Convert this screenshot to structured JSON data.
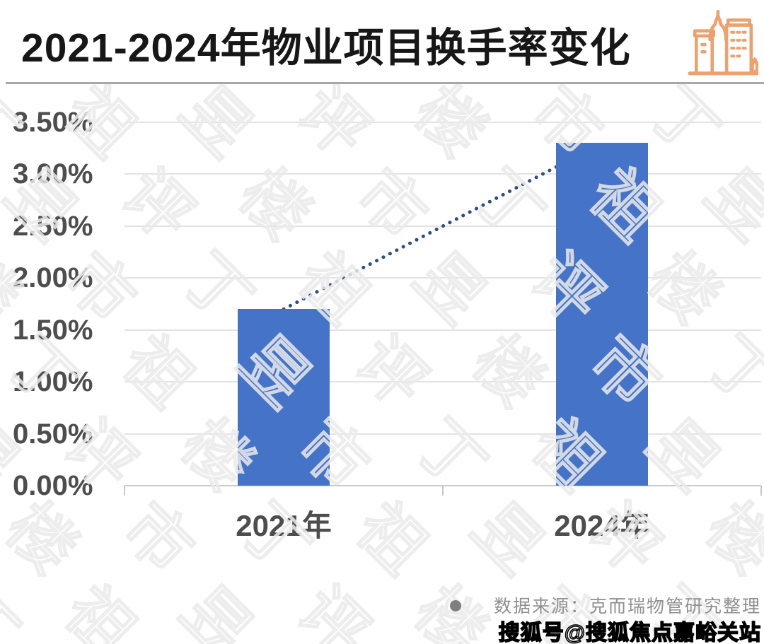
{
  "header": {
    "title": "2021-2024年物业项目换手率变化",
    "icon": "buildings-icon",
    "icon_color": "#EBA26E"
  },
  "chart_data": {
    "type": "bar",
    "title": "2021-2024年物业项目换手率变化",
    "categories": [
      "2021年",
      "2024年"
    ],
    "values": [
      1.7,
      3.3
    ],
    "unit": "%",
    "xlabel": "",
    "ylabel": "",
    "ylim": [
      0,
      3.5
    ],
    "y_ticks": [
      "3.50%",
      "3.00%",
      "2.50%",
      "2.00%",
      "1.50%",
      "1.00%",
      "0.50%",
      "0.00%"
    ],
    "grid": true,
    "legend": "none",
    "bar_color": "#4573C8",
    "trend_line": {
      "style": "dotted",
      "color": "#2F4E7D",
      "from": 1.7,
      "to": 3.3
    }
  },
  "background_watermark": {
    "text": "丁祖昱评楼市"
  },
  "source": {
    "label": "数据来源：克而瑞物管研究整理"
  },
  "sohu_watermark": "搜狐号@搜狐焦点嘉峪关站",
  "colors": {
    "bar": "#4573C8",
    "trend": "#2F4E7D",
    "axis_label": "#4D4D4D",
    "gridline": "#E3E3E3",
    "divider": "#A8A8A8",
    "icon_orange": "#EBA26E",
    "source_text": "#8F8F8F"
  }
}
